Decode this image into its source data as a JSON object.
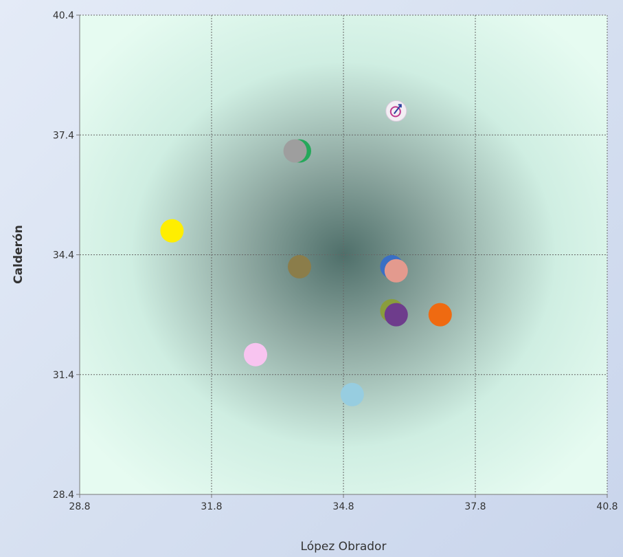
{
  "chart_data": {
    "type": "scatter",
    "xlabel": "López Obrador",
    "ylabel": "Calderón",
    "xlim": [
      28.8,
      40.8
    ],
    "ylim": [
      28.4,
      40.4
    ],
    "xticks": [
      "28.8",
      "31.8",
      "34.8",
      "37.8",
      "40.8"
    ],
    "yticks": [
      "28.4",
      "31.4",
      "34.4",
      "37.4",
      "40.4"
    ],
    "grid": true,
    "legend": "none",
    "points": [
      {
        "x": 36.0,
        "y": 38.0,
        "color": "#f3eef4",
        "marker": "icon"
      },
      {
        "x": 33.8,
        "y": 37.0,
        "color": "#25a85a"
      },
      {
        "x": 33.7,
        "y": 37.0,
        "color": "#9e9e9e"
      },
      {
        "x": 30.9,
        "y": 35.0,
        "color": "#ffee00"
      },
      {
        "x": 33.8,
        "y": 34.1,
        "color": "#8b7d4a"
      },
      {
        "x": 35.9,
        "y": 34.1,
        "color": "#3a6fc4"
      },
      {
        "x": 36.0,
        "y": 34.0,
        "color": "#e39a8e"
      },
      {
        "x": 35.9,
        "y": 33.0,
        "color": "#8a9e3c"
      },
      {
        "x": 36.0,
        "y": 32.9,
        "color": "#6e3c8c"
      },
      {
        "x": 37.0,
        "y": 32.9,
        "color": "#ef6a11"
      },
      {
        "x": 32.8,
        "y": 31.9,
        "color": "#f8c4f0"
      },
      {
        "x": 35.0,
        "y": 30.9,
        "color": "#97cde0"
      }
    ]
  }
}
